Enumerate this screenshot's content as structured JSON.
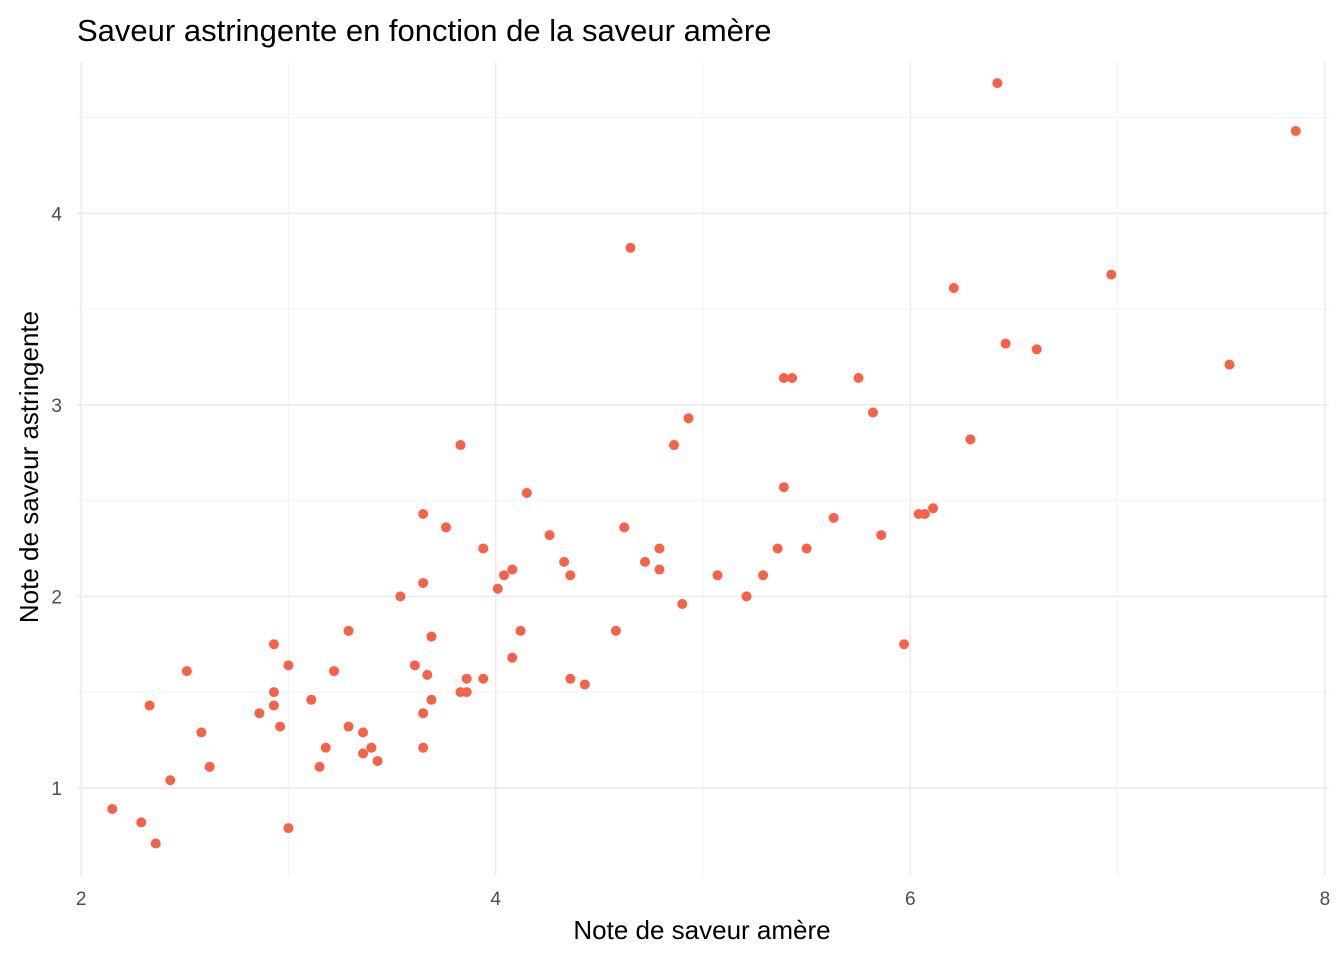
{
  "chart_data": {
    "type": "scatter",
    "title": "Saveur astringente en fonction de la saveur amère",
    "xlabel": "Note de saveur amère",
    "ylabel": "Note de saveur astringente",
    "xlim": [
      1.98,
      8.02
    ],
    "ylim": [
      0.54,
      4.79
    ],
    "xticks": [
      2,
      4,
      6,
      8
    ],
    "yticks": [
      1,
      2,
      3,
      4
    ],
    "grid": true,
    "point_color": "#f4624a",
    "points": [
      {
        "x": 2.15,
        "y": 0.89
      },
      {
        "x": 2.29,
        "y": 0.82
      },
      {
        "x": 2.36,
        "y": 0.71
      },
      {
        "x": 2.33,
        "y": 1.43
      },
      {
        "x": 2.43,
        "y": 1.04
      },
      {
        "x": 2.51,
        "y": 1.61
      },
      {
        "x": 2.58,
        "y": 1.29
      },
      {
        "x": 2.62,
        "y": 1.11
      },
      {
        "x": 2.86,
        "y": 1.39
      },
      {
        "x": 2.93,
        "y": 1.75
      },
      {
        "x": 2.93,
        "y": 1.5
      },
      {
        "x": 2.93,
        "y": 1.43
      },
      {
        "x": 2.96,
        "y": 1.32
      },
      {
        "x": 3.0,
        "y": 1.64
      },
      {
        "x": 3.0,
        "y": 0.79
      },
      {
        "x": 3.11,
        "y": 1.46
      },
      {
        "x": 3.15,
        "y": 1.11
      },
      {
        "x": 3.18,
        "y": 1.21
      },
      {
        "x": 3.22,
        "y": 1.61
      },
      {
        "x": 3.29,
        "y": 1.82
      },
      {
        "x": 3.29,
        "y": 1.32
      },
      {
        "x": 3.36,
        "y": 1.29
      },
      {
        "x": 3.36,
        "y": 1.18
      },
      {
        "x": 3.4,
        "y": 1.21
      },
      {
        "x": 3.43,
        "y": 1.14
      },
      {
        "x": 3.54,
        "y": 2.0
      },
      {
        "x": 3.61,
        "y": 1.64
      },
      {
        "x": 3.65,
        "y": 2.43
      },
      {
        "x": 3.65,
        "y": 2.07
      },
      {
        "x": 3.65,
        "y": 1.39
      },
      {
        "x": 3.65,
        "y": 1.21
      },
      {
        "x": 3.67,
        "y": 1.59
      },
      {
        "x": 3.69,
        "y": 1.79
      },
      {
        "x": 3.69,
        "y": 1.46
      },
      {
        "x": 3.76,
        "y": 2.36
      },
      {
        "x": 3.83,
        "y": 2.79
      },
      {
        "x": 3.83,
        "y": 1.5
      },
      {
        "x": 3.86,
        "y": 1.57
      },
      {
        "x": 3.86,
        "y": 1.5
      },
      {
        "x": 3.94,
        "y": 2.25
      },
      {
        "x": 3.94,
        "y": 1.57
      },
      {
        "x": 4.01,
        "y": 2.04
      },
      {
        "x": 4.04,
        "y": 2.11
      },
      {
        "x": 4.08,
        "y": 2.14
      },
      {
        "x": 4.08,
        "y": 1.68
      },
      {
        "x": 4.12,
        "y": 1.82
      },
      {
        "x": 4.15,
        "y": 2.54
      },
      {
        "x": 4.26,
        "y": 2.32
      },
      {
        "x": 4.33,
        "y": 2.18
      },
      {
        "x": 4.36,
        "y": 2.11
      },
      {
        "x": 4.36,
        "y": 1.57
      },
      {
        "x": 4.43,
        "y": 1.54
      },
      {
        "x": 4.58,
        "y": 1.82
      },
      {
        "x": 4.62,
        "y": 2.36
      },
      {
        "x": 4.65,
        "y": 3.82
      },
      {
        "x": 4.72,
        "y": 2.18
      },
      {
        "x": 4.79,
        "y": 2.25
      },
      {
        "x": 4.79,
        "y": 2.14
      },
      {
        "x": 4.86,
        "y": 2.79
      },
      {
        "x": 4.9,
        "y": 1.96
      },
      {
        "x": 4.93,
        "y": 2.93
      },
      {
        "x": 5.07,
        "y": 2.11
      },
      {
        "x": 5.21,
        "y": 2.0
      },
      {
        "x": 5.29,
        "y": 2.11
      },
      {
        "x": 5.36,
        "y": 2.25
      },
      {
        "x": 5.39,
        "y": 3.14
      },
      {
        "x": 5.39,
        "y": 2.57
      },
      {
        "x": 5.43,
        "y": 3.14
      },
      {
        "x": 5.5,
        "y": 2.25
      },
      {
        "x": 5.63,
        "y": 2.41
      },
      {
        "x": 5.75,
        "y": 3.14
      },
      {
        "x": 5.82,
        "y": 2.96
      },
      {
        "x": 5.86,
        "y": 2.32
      },
      {
        "x": 5.97,
        "y": 1.75
      },
      {
        "x": 6.04,
        "y": 2.43
      },
      {
        "x": 6.07,
        "y": 2.43
      },
      {
        "x": 6.11,
        "y": 2.46
      },
      {
        "x": 6.21,
        "y": 3.61
      },
      {
        "x": 6.29,
        "y": 2.82
      },
      {
        "x": 6.42,
        "y": 4.68
      },
      {
        "x": 6.46,
        "y": 3.32
      },
      {
        "x": 6.61,
        "y": 3.29
      },
      {
        "x": 6.97,
        "y": 3.68
      },
      {
        "x": 7.54,
        "y": 3.21
      },
      {
        "x": 7.86,
        "y": 4.43
      }
    ]
  }
}
